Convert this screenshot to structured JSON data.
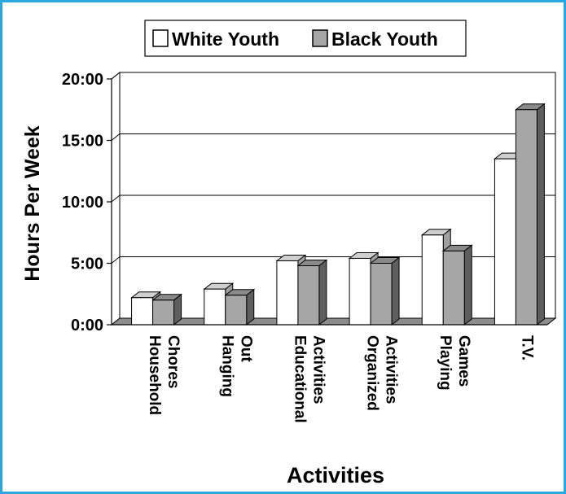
{
  "chart_data": {
    "type": "bar",
    "categories": [
      [
        "Household",
        "Chores"
      ],
      [
        "Hanging",
        "Out"
      ],
      [
        "Educational",
        "Activities"
      ],
      [
        "Organized",
        "Activities"
      ],
      [
        "Playing",
        "Games"
      ],
      [
        "T.V."
      ]
    ],
    "series": [
      {
        "name": "White Youth",
        "values": [
          2.2,
          2.9,
          5.2,
          5.4,
          7.3,
          13.5
        ],
        "color": "#ffffff"
      },
      {
        "name": "Black Youth",
        "values": [
          2.0,
          2.4,
          4.8,
          5.0,
          6.0,
          17.5
        ],
        "color": "#a6a6a6"
      }
    ],
    "yticks": [
      "0:00",
      "5:00",
      "10:00",
      "15:00",
      "20:00"
    ],
    "ylim": [
      0,
      20
    ],
    "xlabel": "Activities",
    "ylabel": "Hours Per Week",
    "grid": true,
    "legend_position": "top-center"
  }
}
